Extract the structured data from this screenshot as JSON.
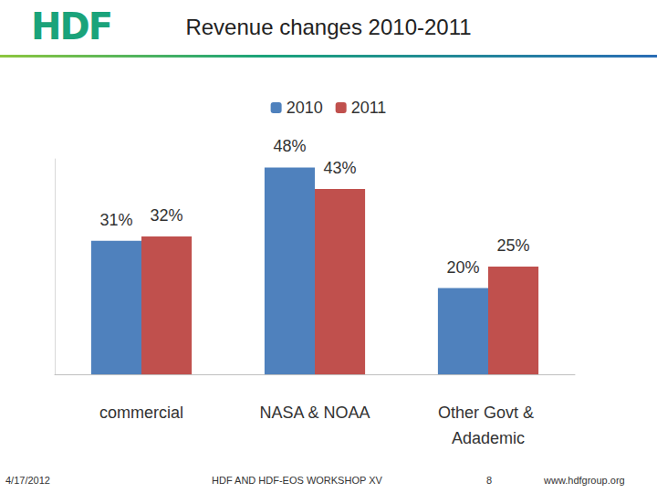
{
  "slide": {
    "logo": "HDF",
    "date": "4/17/2012",
    "footer": "HDF AND HDF-EOS WORKSHOP XV",
    "page": 8,
    "url": "www.hdfgroup.org"
  },
  "chart_data": {
    "type": "bar",
    "title": "Revenue changes 2010-2011",
    "categories": [
      "commercial",
      "NASA & NOAA",
      "Other Govt & Adademic"
    ],
    "series": [
      {
        "name": "2010",
        "color": "#4f81bd",
        "values": [
          31,
          48,
          20
        ],
        "value_labels": [
          "31%",
          "48%",
          "20%"
        ]
      },
      {
        "name": "2011",
        "color": "#c0504d",
        "values": [
          32,
          43,
          25
        ],
        "value_labels": [
          "32%",
          "43%",
          "25%"
        ]
      }
    ],
    "ylim": [
      0,
      50
    ],
    "grid": false,
    "legend": "top",
    "data_labels": true,
    "tick_labels": "x"
  }
}
